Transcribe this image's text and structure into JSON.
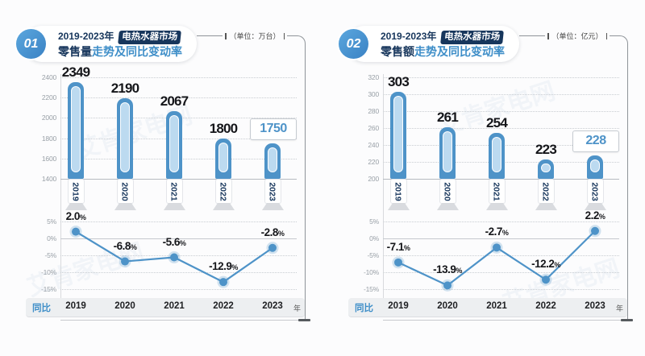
{
  "page": {
    "background": "#fcfcfd",
    "watermark_text": "艾肯家电网"
  },
  "colors": {
    "navy": "#17365C",
    "title_blue": "#3E8EC8",
    "bar_fill": "#4E93C8",
    "bar_inner": "#BCDAF0",
    "line": "#4E93C8",
    "badge_light": "#5BA7DE",
    "badge_dark": "#3A82C4",
    "band_bg": "#EDEFF1",
    "grid": "#C9CDD2",
    "axis_text": "#99A0A7"
  },
  "chart_data": [
    {
      "id": "retail-volume",
      "type": "bar",
      "combo": "bar-with-yoy-line",
      "badge": "01",
      "title": "2019-2023年 电热水器市场 零售量走势及同比变动率",
      "title_parts": {
        "prefix": "2019-2023年",
        "tag": "电热水器市场",
        "metric": "零售量",
        "rest": "走势及同比变动率"
      },
      "unit": "（单位：万台）",
      "categories": [
        "2019",
        "2020",
        "2021",
        "2022",
        "2023"
      ],
      "bar_series": {
        "name": "零售量",
        "values": [
          2349,
          2190,
          2067,
          1800,
          1750
        ],
        "ylim": [
          1400,
          2400
        ],
        "ytick_step": 200,
        "highlight_last": true
      },
      "line_series": {
        "name": "同比",
        "values_pct": [
          2.0,
          -6.8,
          -5.6,
          -12.9,
          -2.8
        ],
        "ylim": [
          -15,
          5
        ],
        "ytick_step": 5
      },
      "row_label": "同比",
      "x_suffix": "年",
      "grid": "dotted"
    },
    {
      "id": "retail-value",
      "type": "bar",
      "combo": "bar-with-yoy-line",
      "badge": "02",
      "title": "2019-2023年 电热水器市场 零售额走势及同比变动率",
      "title_parts": {
        "prefix": "2019-2023年",
        "tag": "电热水器市场",
        "metric": "零售额",
        "rest": "走势及同比变动率"
      },
      "unit": "（单位：亿元）",
      "categories": [
        "2019",
        "2020",
        "2021",
        "2022",
        "2023"
      ],
      "bar_series": {
        "name": "零售额",
        "values": [
          303,
          261,
          254,
          223,
          228
        ],
        "ylim": [
          200,
          320
        ],
        "ytick_step": 20,
        "highlight_last": true
      },
      "line_series": {
        "name": "同比",
        "values_pct": [
          -7.1,
          -13.9,
          -2.7,
          -12.2,
          2.2
        ],
        "ylim": [
          -15,
          5
        ],
        "ytick_step": 5
      },
      "row_label": "同比",
      "x_suffix": "年",
      "grid": "dotted"
    }
  ]
}
